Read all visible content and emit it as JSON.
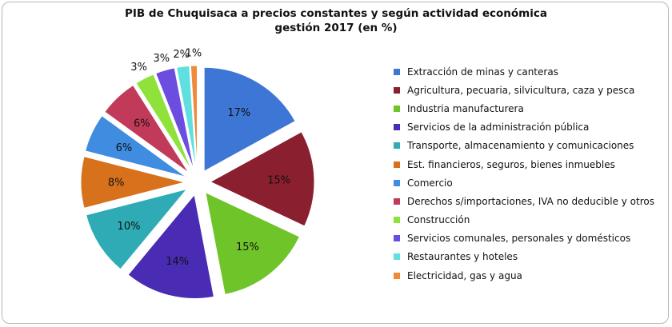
{
  "chart_data": {
    "type": "pie",
    "title": "PIB de Chuquisaca a precios constantes y según actividad económica",
    "subtitle": "gestión 2017 (en %)",
    "legend_position": "right",
    "slices": [
      {
        "name": "Extracción de minas y canteras",
        "value": 17,
        "label": "17%",
        "color": "#3e76d6"
      },
      {
        "name": "Agricultura, pecuaria, silvicultura, caza y pesca",
        "value": 15,
        "label": "15%",
        "color": "#8a1f2f"
      },
      {
        "name": "Industria manufacturera",
        "value": 15,
        "label": "15%",
        "color": "#6fc42a"
      },
      {
        "name": "Servicios de la administración pública",
        "value": 14,
        "label": "14%",
        "color": "#4a2bb3"
      },
      {
        "name": "Transporte, almacenamiento y comunicaciones",
        "value": 10,
        "label": "10%",
        "color": "#2eabb5"
      },
      {
        "name": "Est. financieros, seguros, bienes inmuebles",
        "value": 8,
        "label": "8%",
        "color": "#d8711c"
      },
      {
        "name": "Comercio",
        "value": 6,
        "label": "6%",
        "color": "#3f8ce0"
      },
      {
        "name": "Derechos s/importaciones, IVA no deducible y otros",
        "value": 6,
        "label": "6%",
        "color": "#c23a5a"
      },
      {
        "name": "Construcción",
        "value": 3,
        "label": "3%",
        "color": "#8ee23a"
      },
      {
        "name": "Servicios comunales, personales y domésticos",
        "value": 3,
        "label": "3%",
        "color": "#6b4ee0"
      },
      {
        "name": "Restaurantes y hoteles",
        "value": 2,
        "label": "2%",
        "color": "#5ee0e0"
      },
      {
        "name": "Electricidad, gas y agua",
        "value": 1,
        "label": "1%",
        "color": "#f0893a"
      }
    ]
  }
}
